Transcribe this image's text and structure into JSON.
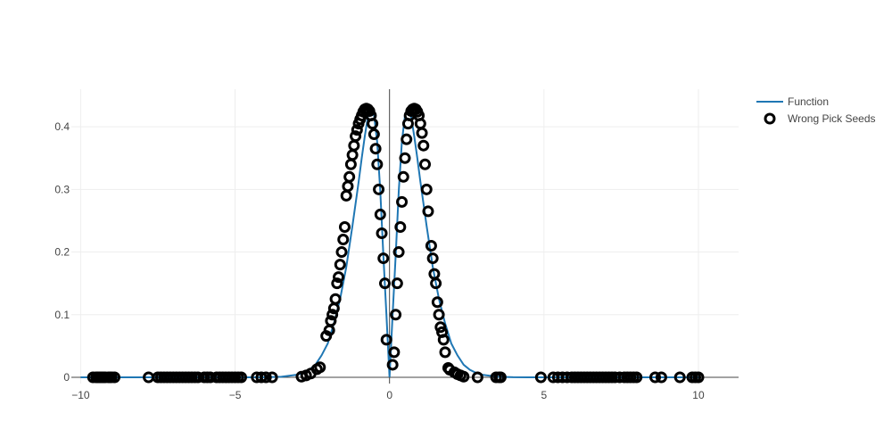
{
  "chart_data": {
    "type": "scatter",
    "title": "",
    "xlabel": "",
    "ylabel": "",
    "xlim": [
      -10.3,
      11.3
    ],
    "ylim": [
      -0.01,
      0.46
    ],
    "grid": true,
    "legend_position": "top-right",
    "x_ticks": [
      {
        "value": -10,
        "label": "−10"
      },
      {
        "value": -5,
        "label": "−5"
      },
      {
        "value": 0,
        "label": "0"
      },
      {
        "value": 5,
        "label": "5"
      },
      {
        "value": 10,
        "label": "10"
      }
    ],
    "y_ticks": [
      {
        "value": 0,
        "label": "0"
      },
      {
        "value": 0.1,
        "label": "0.1"
      },
      {
        "value": 0.2,
        "label": "0.2"
      },
      {
        "value": 0.3,
        "label": "0.3"
      },
      {
        "value": 0.4,
        "label": "0.4"
      }
    ],
    "series": [
      {
        "name": "Function",
        "kind": "line",
        "color": "#1f77b4",
        "x": [
          -10,
          -9,
          -8,
          -7,
          -6,
          -5,
          -4.5,
          -4,
          -3.5,
          -3,
          -2.8,
          -2.6,
          -2.4,
          -2.2,
          -2,
          -1.8,
          -1.6,
          -1.4,
          -1.2,
          -1.0,
          -0.9,
          -0.8,
          -0.7,
          -0.6,
          -0.5,
          -0.4,
          -0.3,
          -0.2,
          -0.1,
          0,
          0.1,
          0.2,
          0.3,
          0.4,
          0.5,
          0.6,
          0.7,
          0.8,
          0.9,
          1.0,
          1.2,
          1.4,
          1.6,
          1.8,
          2,
          2.2,
          2.4,
          2.6,
          2.8,
          3,
          3.5,
          4,
          4.5,
          5,
          6,
          7,
          8,
          9,
          10
        ],
        "y": [
          0,
          0,
          0,
          0,
          0,
          0,
          0,
          0.0001,
          0.0009,
          0.004,
          0.007,
          0.012,
          0.02,
          0.035,
          0.054,
          0.086,
          0.125,
          0.176,
          0.242,
          0.312,
          0.35,
          0.385,
          0.416,
          0.428,
          0.418,
          0.376,
          0.298,
          0.195,
          0.1,
          0.0,
          0.1,
          0.195,
          0.298,
          0.376,
          0.418,
          0.428,
          0.416,
          0.385,
          0.35,
          0.312,
          0.242,
          0.176,
          0.125,
          0.086,
          0.054,
          0.035,
          0.02,
          0.012,
          0.007,
          0.004,
          0.0009,
          0.0001,
          0,
          0,
          0,
          0,
          0,
          0,
          0
        ]
      },
      {
        "name": "Wrong Pick Seeds",
        "kind": "markers",
        "color": "#000000",
        "x": [
          -9.6,
          -9.5,
          -9.45,
          -9.4,
          -9.35,
          -9.3,
          -9.25,
          -9.2,
          -9.1,
          -9.05,
          -9.0,
          -8.9,
          -7.8,
          -7.5,
          -7.4,
          -7.3,
          -7.2,
          -7.1,
          -7.0,
          -6.9,
          -6.8,
          -6.7,
          -6.6,
          -6.5,
          -6.4,
          -6.3,
          -6.2,
          -6.0,
          -5.9,
          -5.8,
          -5.6,
          -5.5,
          -5.4,
          -5.3,
          -5.2,
          -5.1,
          -5.0,
          -4.9,
          -4.8,
          -4.3,
          -4.15,
          -4.0,
          -3.8,
          -2.85,
          -2.7,
          -2.55,
          -2.35,
          -2.25,
          -2.05,
          -1.95,
          -1.9,
          -1.85,
          -1.8,
          -1.75,
          -1.7,
          -1.65,
          -1.6,
          -1.55,
          -1.5,
          -1.45,
          -1.4,
          -1.35,
          -1.3,
          -1.25,
          -1.2,
          -1.15,
          -1.1,
          -1.05,
          -1.0,
          -0.95,
          -0.9,
          -0.85,
          -0.8,
          -0.75,
          -0.7,
          -0.65,
          -0.6,
          -0.55,
          -0.5,
          -0.45,
          -0.4,
          -0.35,
          -0.3,
          -0.25,
          -0.2,
          -0.15,
          -0.1,
          0.1,
          0.15,
          0.2,
          0.25,
          0.3,
          0.35,
          0.4,
          0.45,
          0.5,
          0.55,
          0.6,
          0.65,
          0.7,
          0.75,
          0.8,
          0.85,
          0.9,
          0.95,
          1.0,
          1.05,
          1.1,
          1.15,
          1.2,
          1.25,
          1.35,
          1.4,
          1.45,
          1.5,
          1.55,
          1.6,
          1.65,
          1.7,
          1.75,
          1.8,
          1.9,
          1.95,
          2.1,
          2.2,
          2.3,
          2.4,
          2.85,
          3.45,
          3.55,
          3.6,
          4.9,
          5.3,
          5.45,
          5.6,
          5.75,
          5.9,
          6.0,
          6.1,
          6.2,
          6.3,
          6.4,
          6.5,
          6.6,
          6.7,
          6.8,
          6.9,
          7.0,
          7.1,
          7.2,
          7.3,
          7.45,
          7.6,
          7.7,
          7.8,
          7.9,
          8.0,
          8.6,
          8.8,
          9.4,
          9.8,
          9.9,
          10.0
        ],
        "y": [
          0,
          0,
          0,
          0,
          0,
          0,
          0,
          0,
          0,
          0,
          0,
          0,
          0,
          0,
          0,
          0,
          0,
          0,
          0,
          0,
          0,
          0,
          0,
          0,
          0,
          0,
          0,
          0,
          0,
          0,
          0,
          0,
          0,
          0,
          0,
          0,
          0,
          0,
          0,
          0,
          0,
          0,
          0,
          0.001,
          0.003,
          0.006,
          0.013,
          0.016,
          0.066,
          0.075,
          0.09,
          0.1,
          0.11,
          0.125,
          0.15,
          0.16,
          0.18,
          0.2,
          0.22,
          0.24,
          0.29,
          0.305,
          0.32,
          0.34,
          0.355,
          0.37,
          0.385,
          0.395,
          0.405,
          0.412,
          0.418,
          0.424,
          0.428,
          0.429,
          0.428,
          0.425,
          0.418,
          0.405,
          0.388,
          0.365,
          0.34,
          0.3,
          0.26,
          0.23,
          0.19,
          0.15,
          0.06,
          0.02,
          0.04,
          0.1,
          0.15,
          0.2,
          0.24,
          0.28,
          0.32,
          0.35,
          0.38,
          0.405,
          0.418,
          0.425,
          0.428,
          0.429,
          0.428,
          0.424,
          0.418,
          0.405,
          0.39,
          0.37,
          0.34,
          0.3,
          0.265,
          0.21,
          0.19,
          0.165,
          0.15,
          0.12,
          0.1,
          0.08,
          0.072,
          0.06,
          0.04,
          0.015,
          0.012,
          0.008,
          0.005,
          0.003,
          0.001,
          0,
          0,
          0,
          0,
          0,
          0,
          0,
          0,
          0,
          0,
          0,
          0,
          0,
          0,
          0,
          0,
          0,
          0,
          0,
          0,
          0,
          0,
          0,
          0,
          0,
          0,
          0,
          0,
          0,
          0,
          0,
          0,
          0,
          0,
          0,
          0
        ]
      }
    ]
  },
  "legend": {
    "items": [
      {
        "label": "Function",
        "symbol": "line",
        "color": "#1f77b4"
      },
      {
        "label": "Wrong Pick Seeds",
        "symbol": "circle-open",
        "color": "#000000"
      }
    ]
  }
}
